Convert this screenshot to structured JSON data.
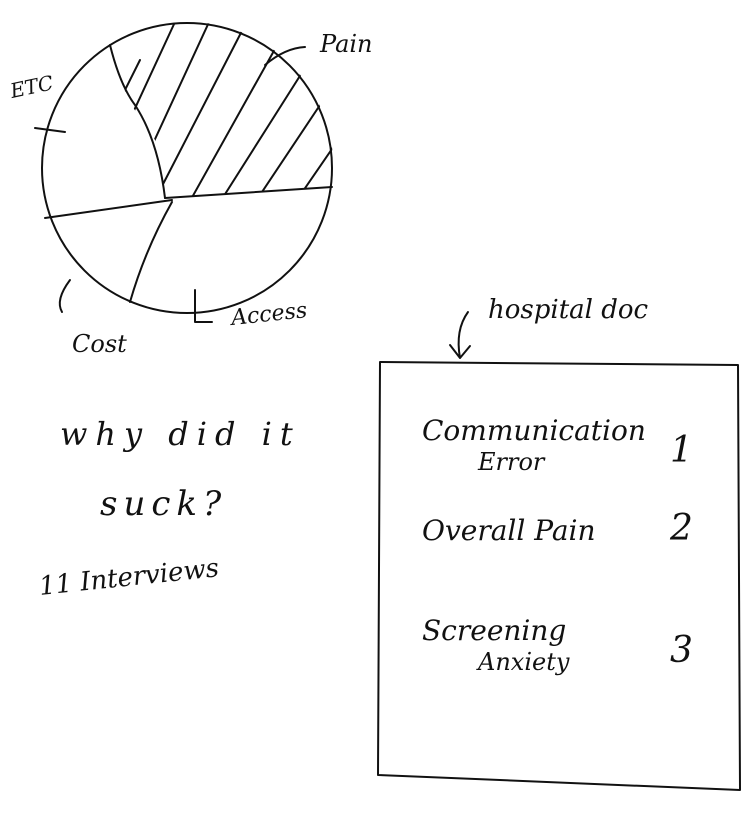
{
  "pie": {
    "labels": {
      "etc": "ETC",
      "pain": "Pain",
      "cost": "Cost",
      "access": "Access"
    }
  },
  "notes": {
    "question": [
      "why did it",
      "suck?"
    ],
    "interviews": "11 Interviews"
  },
  "document": {
    "label": "hospital doc",
    "items": [
      {
        "label": [
          "Communication",
          "Error"
        ],
        "rank": "1"
      },
      {
        "label": [
          "Overall Pain"
        ],
        "rank": "2"
      },
      {
        "label": [
          "Screening",
          "Anxiety"
        ],
        "rank": "3"
      }
    ]
  }
}
